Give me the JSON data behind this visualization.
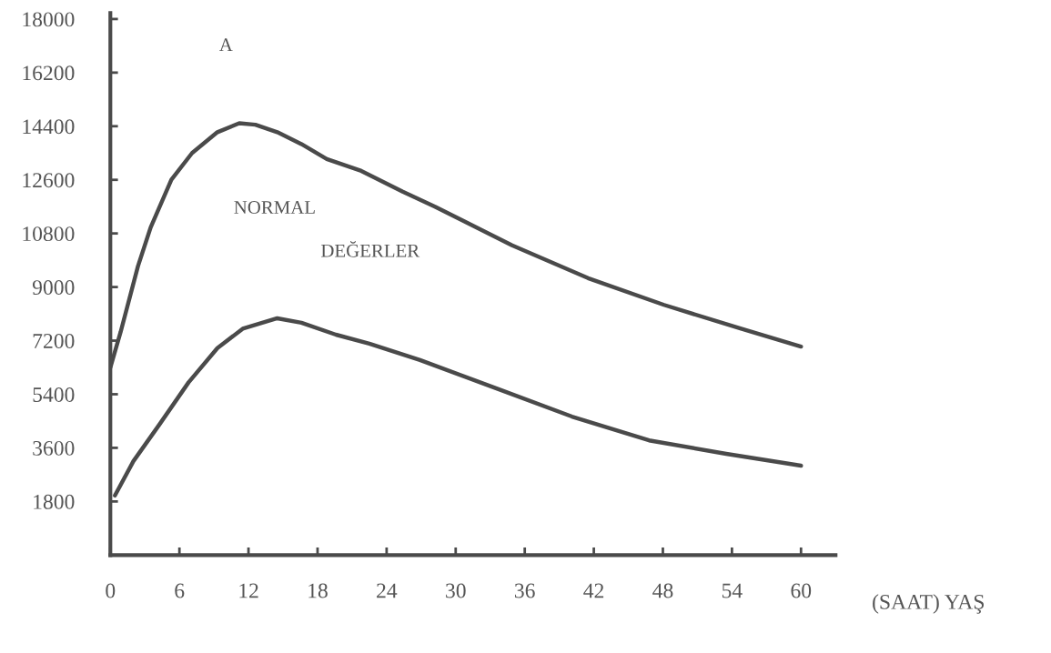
{
  "chart_data": {
    "type": "line",
    "xlabel": "(SAAT) YAŞ",
    "annotations": [
      "A",
      "NORMAL",
      "DEĞERLER"
    ],
    "xlim": [
      0,
      63
    ],
    "xticks": [
      0,
      6,
      12,
      18,
      24,
      30,
      36,
      42,
      48,
      54,
      60
    ],
    "ylim": [
      0,
      18200
    ],
    "yticks": [
      1800,
      3600,
      5400,
      7200,
      9000,
      10800,
      12600,
      14400,
      16200,
      18000
    ],
    "grid": false,
    "marker": "none",
    "line_style": "solid",
    "series": [
      {
        "color": "#4a4a4a",
        "x": [
          0,
          0.9,
          2.4,
          3.5,
          5.3,
          7.1,
          9.3,
          11.2,
          12.6,
          14.5,
          16.6,
          18.8,
          21.8,
          25.4,
          28.2,
          34.9,
          41.5,
          48.1,
          54.8,
          60
        ],
        "values": [
          6300,
          7500,
          9700,
          11000,
          12600,
          13500,
          14200,
          14500,
          14450,
          14200,
          13800,
          13300,
          12900,
          12200,
          11700,
          10400,
          9300,
          8400,
          7600,
          7000
        ]
      },
      {
        "color": "#4a4a4a",
        "x": [
          0.4,
          2.0,
          4.2,
          6.8,
          9.3,
          11.5,
          14.5,
          16.6,
          19.6,
          22.5,
          26.9,
          33.5,
          40.1,
          46.8,
          53.5,
          60
        ],
        "values": [
          2000,
          3150,
          4350,
          5800,
          6950,
          7600,
          7950,
          7800,
          7400,
          7100,
          6550,
          5600,
          4650,
          3850,
          3400,
          3000
        ]
      }
    ]
  }
}
